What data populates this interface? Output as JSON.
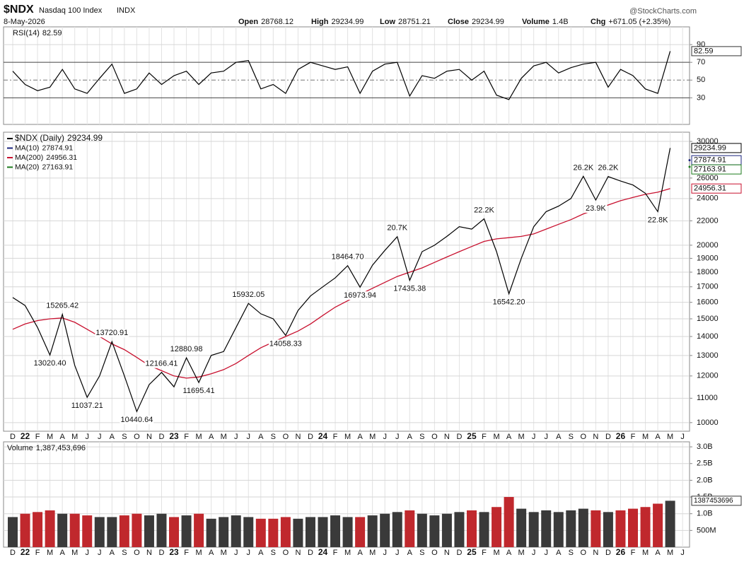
{
  "header": {
    "symbol": "$NDX",
    "name": "Nasdaq 100 Index",
    "exchange": "INDX",
    "date": "8-May-2026",
    "fields": [
      {
        "label": "Open",
        "value": 28768.12
      },
      {
        "label": "High",
        "value": 29234.99
      },
      {
        "label": "Low",
        "value": 28751.21
      },
      {
        "label": "Close",
        "value": 29234.99
      },
      {
        "label": "Volume",
        "value": "1.4B"
      },
      {
        "label": "Chg",
        "value": "+671.05 (+2.35%)"
      }
    ],
    "source": "@StockCharts.com"
  },
  "chart_data": [
    {
      "type": "line",
      "title": "RSI(14)",
      "color": "#000000",
      "overbought": 70,
      "oversold": 30,
      "ylim": [
        0,
        110
      ],
      "yticks": [
        30,
        50,
        70,
        90
      ],
      "values": [
        60,
        45,
        38,
        42,
        62,
        40,
        35,
        52,
        68,
        35,
        40,
        58,
        45,
        55,
        60,
        45,
        58,
        60,
        70,
        72,
        40,
        45,
        35,
        62,
        70,
        66,
        62,
        65,
        35,
        60,
        68,
        70,
        32,
        55,
        52,
        60,
        62,
        50,
        60,
        33,
        28,
        52,
        66,
        70,
        58,
        64,
        68,
        70,
        42,
        62,
        55,
        40,
        35,
        82.59,
        null
      ]
    },
    {
      "type": "line",
      "log": true,
      "ylim": [
        9670,
        31100
      ],
      "yticks": [
        10000,
        11000,
        12000,
        13000,
        14000,
        15000,
        16000,
        17000,
        18000,
        19000,
        20000,
        22000,
        24000,
        26000,
        30000
      ],
      "categories": [
        "D",
        "22",
        "F",
        "M",
        "A",
        "M",
        "J",
        "J",
        "A",
        "S",
        "O",
        "N",
        "D",
        "23",
        "F",
        "M",
        "A",
        "M",
        "J",
        "J",
        "A",
        "S",
        "O",
        "N",
        "D",
        "24",
        "F",
        "M",
        "A",
        "M",
        "J",
        "J",
        "A",
        "S",
        "O",
        "N",
        "D",
        "25",
        "F",
        "M",
        "A",
        "M",
        "J",
        "J",
        "A",
        "S",
        "O",
        "N",
        "D",
        "26",
        "F",
        "M",
        "A",
        "M",
        "J"
      ],
      "series": [
        {
          "name": "$NDX (Daily)",
          "color": "#000000",
          "values": [
            16300,
            15800,
            14500,
            13020.4,
            15265.42,
            12500,
            11037.21,
            12000,
            13720.91,
            12000,
            10440.64,
            11600,
            12166.41,
            11500,
            12880.98,
            11695.41,
            13000,
            13200,
            14500,
            15932.05,
            15300,
            15000,
            14058.33,
            15500,
            16400,
            17000,
            17600,
            18464.7,
            16973.94,
            18500,
            19600,
            20675,
            17435.38,
            19500,
            20000,
            20700,
            21500,
            21300,
            22175,
            19500,
            16542.2,
            19000,
            21500,
            22800,
            23300,
            24000,
            26180,
            23854,
            26150,
            25700,
            25300,
            24500,
            22800,
            29234.99,
            null
          ],
          "value_labels": [
            null,
            null,
            null,
            "13020.40",
            "15265.42",
            null,
            "11037.21",
            null,
            "13720.91",
            null,
            "10440.64",
            null,
            "12166.41",
            null,
            "12880.98",
            "11695.41",
            null,
            null,
            null,
            "15932.05",
            null,
            null,
            "14058.33",
            null,
            null,
            null,
            null,
            "18464.70",
            "16973.94",
            null,
            null,
            "20.7K",
            "17435.38",
            null,
            null,
            null,
            null,
            null,
            "22.2K",
            null,
            "16542.20",
            null,
            null,
            null,
            null,
            null,
            "26.2K",
            "23.9K",
            "26.2K",
            null,
            null,
            null,
            "22.8K",
            null,
            null
          ]
        },
        {
          "name": "MA(10)",
          "color": "#1a237e",
          "last": 27874.91
        },
        {
          "name": "MA(200)",
          "color": "#c8102e",
          "values": [
            14400,
            14700,
            14900,
            15000,
            15050,
            14800,
            14400,
            14000,
            13600,
            13300,
            12900,
            12500,
            12250,
            12000,
            11900,
            11950,
            12100,
            12300,
            12600,
            13000,
            13400,
            13700,
            14000,
            14300,
            14700,
            15200,
            15700,
            16100,
            16500,
            16900,
            17300,
            17700,
            18000,
            18300,
            18700,
            19100,
            19500,
            19900,
            20300,
            20500,
            20600,
            20700,
            20900,
            21300,
            21700,
            22100,
            22600,
            23000,
            23400,
            23800,
            24100,
            24400,
            24600,
            24956.31,
            null
          ]
        },
        {
          "name": "MA(20)",
          "color": "#1b7a1b",
          "last": 27163.91
        }
      ]
    },
    {
      "type": "bar",
      "title": "Volume",
      "up_color": "#3a3a3a",
      "down_color": "#c0282d",
      "ylim": [
        0,
        3150000000
      ],
      "yticks": [
        {
          "value": 500000000,
          "label": "500M"
        },
        {
          "value": 1000000000,
          "label": "1.0B"
        },
        {
          "value": 1500000000,
          "label": "1.5B"
        },
        {
          "value": 2000000000,
          "label": "2.0B"
        },
        {
          "value": 2500000000,
          "label": "2.5B"
        },
        {
          "value": 3000000000,
          "label": "3.0B"
        }
      ],
      "categories": [
        "D",
        "22",
        "F",
        "M",
        "A",
        "M",
        "J",
        "J",
        "A",
        "S",
        "O",
        "N",
        "D",
        "23",
        "F",
        "M",
        "A",
        "M",
        "J",
        "J",
        "A",
        "S",
        "O",
        "N",
        "D",
        "24",
        "F",
        "M",
        "A",
        "M",
        "J",
        "J",
        "A",
        "S",
        "O",
        "N",
        "D",
        "25",
        "F",
        "M",
        "A",
        "M",
        "J",
        "J",
        "A",
        "S",
        "O",
        "N",
        "D",
        "26",
        "F",
        "M",
        "A",
        "M",
        "J"
      ],
      "values": [
        900000000,
        1000000000,
        1050000000,
        1100000000,
        1000000000,
        1000000000,
        950000000,
        900000000,
        900000000,
        950000000,
        1000000000,
        950000000,
        1000000000,
        900000000,
        950000000,
        1000000000,
        850000000,
        900000000,
        950000000,
        900000000,
        850000000,
        850000000,
        900000000,
        850000000,
        900000000,
        900000000,
        950000000,
        900000000,
        900000000,
        950000000,
        1000000000,
        1050000000,
        1100000000,
        1000000000,
        950000000,
        1000000000,
        1050000000,
        1100000000,
        1050000000,
        1200000000,
        1500000000,
        1150000000,
        1050000000,
        1100000000,
        1050000000,
        1100000000,
        1150000000,
        1100000000,
        1050000000,
        1100000000,
        1150000000,
        1200000000,
        1300000000,
        1387453696,
        null
      ],
      "value_labels": [
        null,
        null,
        null,
        null,
        null,
        null,
        null,
        null,
        null,
        null,
        null,
        null,
        null,
        null,
        null,
        null,
        null,
        null,
        null,
        null,
        null,
        null,
        null,
        null,
        null,
        null,
        null,
        null,
        null,
        null,
        null,
        null,
        null,
        null,
        null,
        null,
        null,
        null,
        null,
        null,
        null,
        null,
        null,
        null,
        null,
        null,
        null,
        null,
        null,
        null,
        null,
        null,
        null,
        "1,387,453,696",
        null
      ]
    }
  ]
}
